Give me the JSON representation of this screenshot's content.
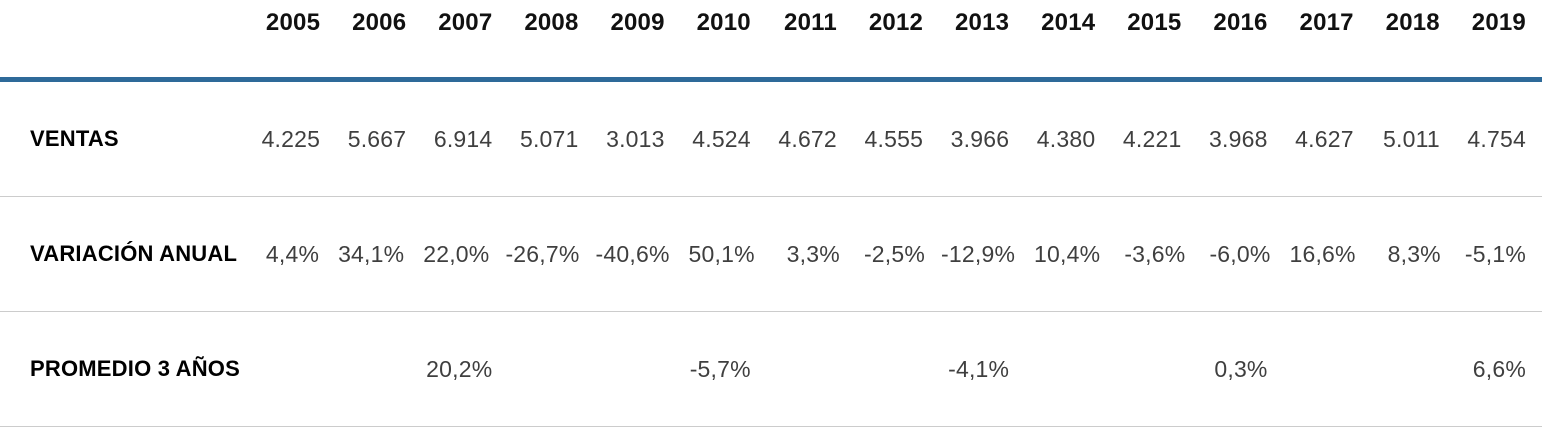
{
  "table": {
    "years": [
      "2005",
      "2006",
      "2007",
      "2008",
      "2009",
      "2010",
      "2011",
      "2012",
      "2013",
      "2014",
      "2015",
      "2016",
      "2017",
      "2018",
      "2019"
    ],
    "rows": [
      {
        "label": "VENTAS",
        "values": [
          "4.225",
          "5.667",
          "6.914",
          "5.071",
          "3.013",
          "4.524",
          "4.672",
          "4.555",
          "3.966",
          "4.380",
          "4.221",
          "3.968",
          "4.627",
          "5.011",
          "4.754"
        ]
      },
      {
        "label": "VARIACIÓN ANUAL",
        "values": [
          "4,4%",
          "34,1%",
          "22,0%",
          "-26,7%",
          "-40,6%",
          "50,1%",
          "3,3%",
          "-2,5%",
          "-12,9%",
          "10,4%",
          "-3,6%",
          "-6,0%",
          "16,6%",
          "8,3%",
          "-5,1%"
        ]
      },
      {
        "label": "PROMEDIO 3 AÑOS",
        "values": [
          "",
          "",
          "20,2%",
          "",
          "",
          "-5,7%",
          "",
          "",
          "-4,1%",
          "",
          "",
          "0,3%",
          "",
          "",
          "6,6%"
        ]
      }
    ]
  },
  "chart_data": {
    "type": "table",
    "columns": [
      "2005",
      "2006",
      "2007",
      "2008",
      "2009",
      "2010",
      "2011",
      "2012",
      "2013",
      "2014",
      "2015",
      "2016",
      "2017",
      "2018",
      "2019"
    ],
    "rows": [
      {
        "label": "VENTAS",
        "values": [
          4225,
          5667,
          6914,
          5071,
          3013,
          4524,
          4672,
          4555,
          3966,
          4380,
          4221,
          3968,
          4627,
          5011,
          4754
        ]
      },
      {
        "label": "VARIACIÓN ANUAL",
        "values_percent": [
          4.4,
          34.1,
          22.0,
          -26.7,
          -40.6,
          50.1,
          3.3,
          -2.5,
          -12.9,
          10.4,
          -3.6,
          -6.0,
          16.6,
          8.3,
          -5.1
        ]
      },
      {
        "label": "PROMEDIO 3 AÑOS",
        "values_percent": [
          null,
          null,
          20.2,
          null,
          null,
          -5.7,
          null,
          null,
          -4.1,
          null,
          null,
          0.3,
          null,
          null,
          6.6
        ]
      }
    ],
    "notes": "Spanish-format numbers: '.' thousands separator in VENTAS, ',' decimal separator in percentages. PROMEDIO 3 AÑOS only has values every third year (2007, 2010, 2013, 2016, 2019)."
  },
  "colors": {
    "accent_rule": "#2e6a99",
    "row_separator": "#cccccc",
    "header_text": "#111111",
    "label_text": "#000000",
    "value_text": "#3f3f3f",
    "background": "#ffffff"
  }
}
